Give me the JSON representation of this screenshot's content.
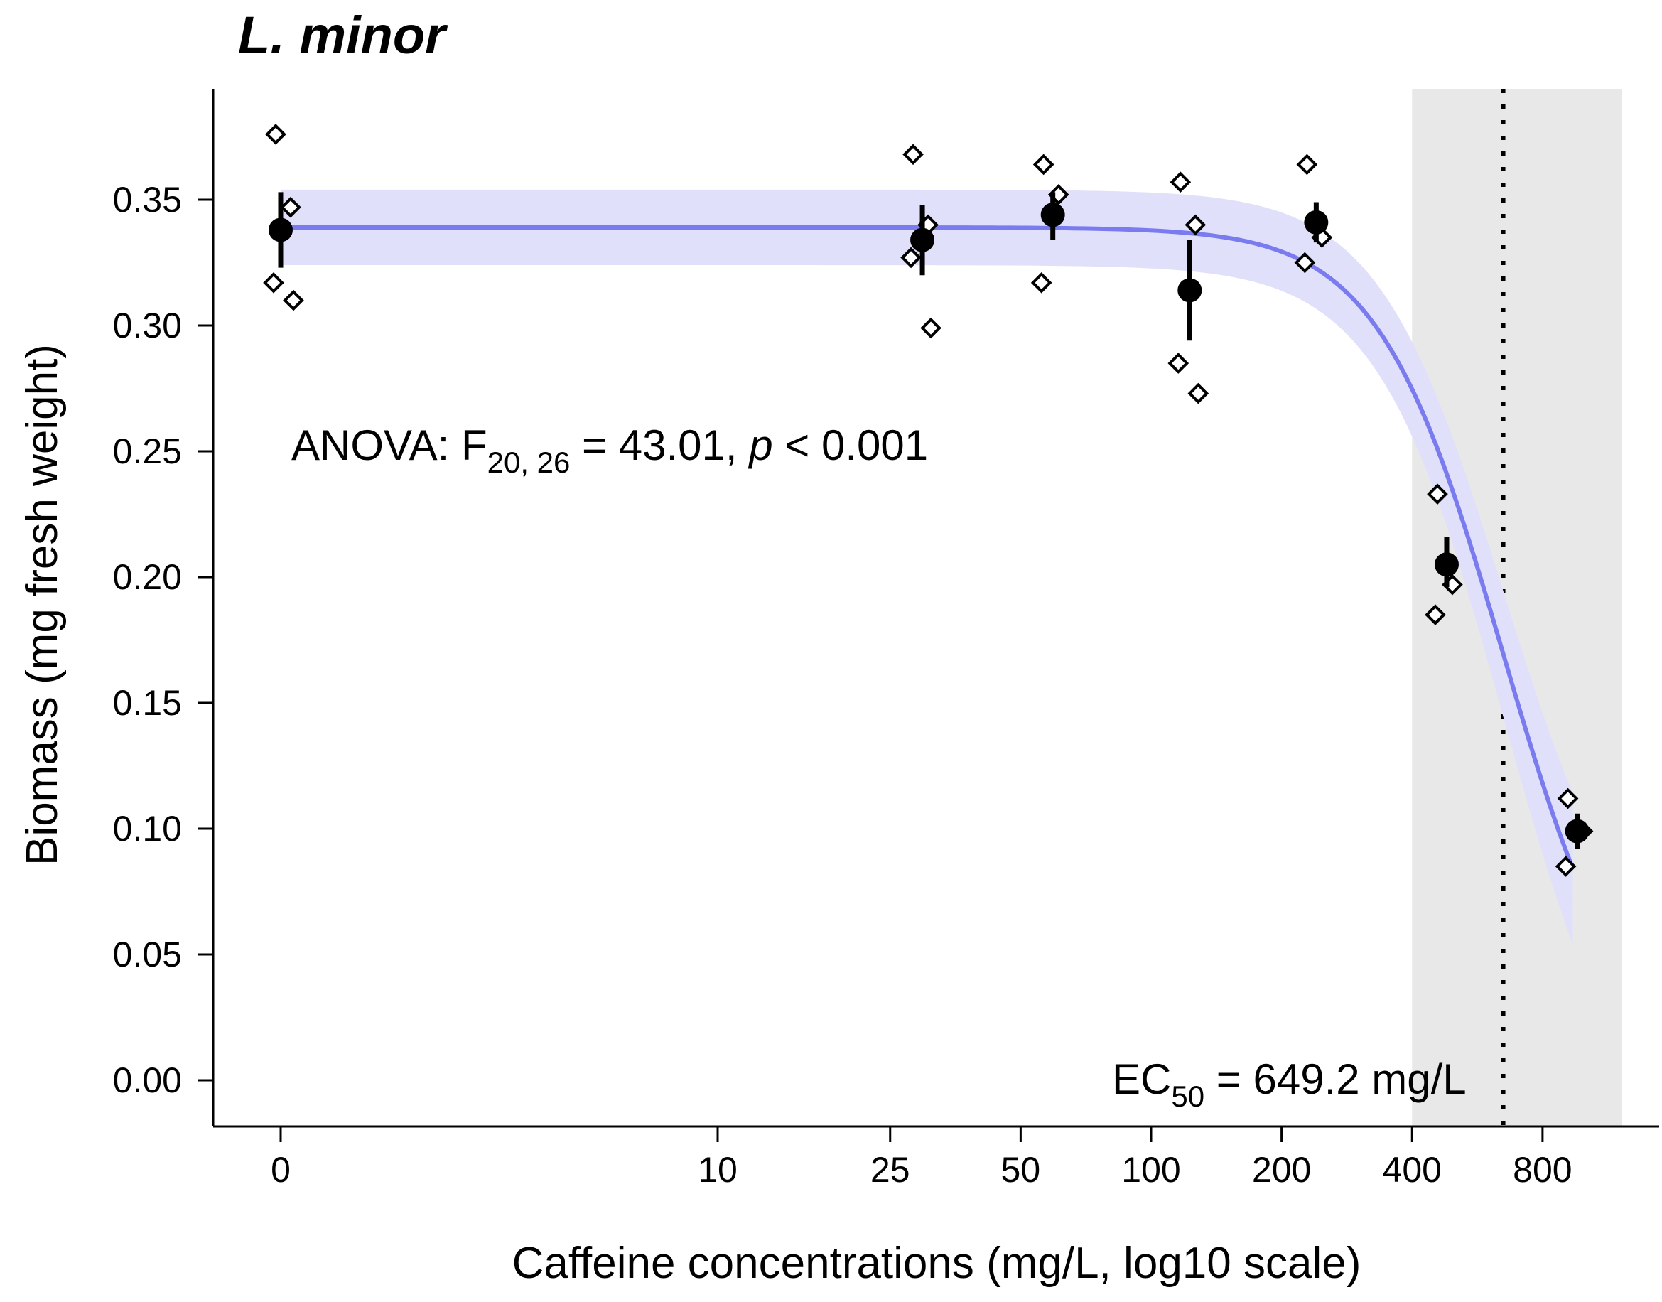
{
  "chart_data": {
    "type": "scatter",
    "title": "L. minor",
    "xlabel": "Caffeine concentrations (mg/L, log10 scale)",
    "ylabel": "Biomass (mg fresh weight)",
    "x_scale": "log10 (pseudo-log, 0 plotted at left)",
    "x_ticks": [
      {
        "label": "0",
        "value": 0
      },
      {
        "label": "10",
        "value": 10
      },
      {
        "label": "25",
        "value": 25
      },
      {
        "label": "50",
        "value": 50
      },
      {
        "label": "100",
        "value": 100
      },
      {
        "label": "200",
        "value": 200
      },
      {
        "label": "400",
        "value": 400
      },
      {
        "label": "800",
        "value": 800
      }
    ],
    "y_ticks": [
      "0.00",
      "0.05",
      "0.10",
      "0.15",
      "0.20",
      "0.25",
      "0.30",
      "0.35"
    ],
    "ylim": [
      -0.018,
      0.395
    ],
    "grid": false,
    "means": [
      {
        "x": 0,
        "y": 0.338,
        "err_low": 0.323,
        "err_high": 0.353
      },
      {
        "x": 29,
        "y": 0.334,
        "err_low": 0.32,
        "err_high": 0.348
      },
      {
        "x": 58,
        "y": 0.344,
        "err_low": 0.334,
        "err_high": 0.353
      },
      {
        "x": 120,
        "y": 0.314,
        "err_low": 0.294,
        "err_high": 0.334
      },
      {
        "x": 235,
        "y": 0.341,
        "err_low": 0.333,
        "err_high": 0.349
      },
      {
        "x": 470,
        "y": 0.205,
        "err_low": 0.196,
        "err_high": 0.216
      },
      {
        "x": 940,
        "y": 0.099,
        "err_low": 0.092,
        "err_high": 0.106
      }
    ],
    "replicates": [
      {
        "x": 0,
        "values": [
          0.376,
          0.347,
          0.317,
          0.31
        ]
      },
      {
        "x": 29,
        "values": [
          0.368,
          0.34,
          0.327,
          0.299
        ]
      },
      {
        "x": 58,
        "values": [
          0.364,
          0.352,
          0.317
        ]
      },
      {
        "x": 120,
        "values": [
          0.357,
          0.34,
          0.285,
          0.273
        ]
      },
      {
        "x": 235,
        "values": [
          0.364,
          0.335,
          0.325
        ]
      },
      {
        "x": 470,
        "values": [
          0.233,
          0.197,
          0.185
        ]
      },
      {
        "x": 940,
        "values": [
          0.112,
          0.099,
          0.085
        ]
      }
    ],
    "fit_curve": {
      "model": "log-logistic",
      "upper": 0.339,
      "ec50": 649.2,
      "slope": 3.0,
      "color": "#7b7bf0",
      "ci_color": "#e0e0fb",
      "ci_halfwidth_start": 0.015,
      "ci_halfwidth_end": 0.035
    },
    "shaded_region": {
      "x_from": 400,
      "x_to": 1300,
      "color": "#e8e8e8"
    },
    "ec50_line": {
      "x": 649.2,
      "style": "dotted"
    },
    "annotations": {
      "anova": {
        "prefix": "ANOVA: F",
        "subscript": "20, 26",
        "middle": " = 43.01, ",
        "p": "p",
        "suffix": " < 0.001"
      },
      "ec50": {
        "prefix": "EC",
        "subscript": "50",
        "suffix": " = 649.2 mg/L"
      }
    }
  }
}
